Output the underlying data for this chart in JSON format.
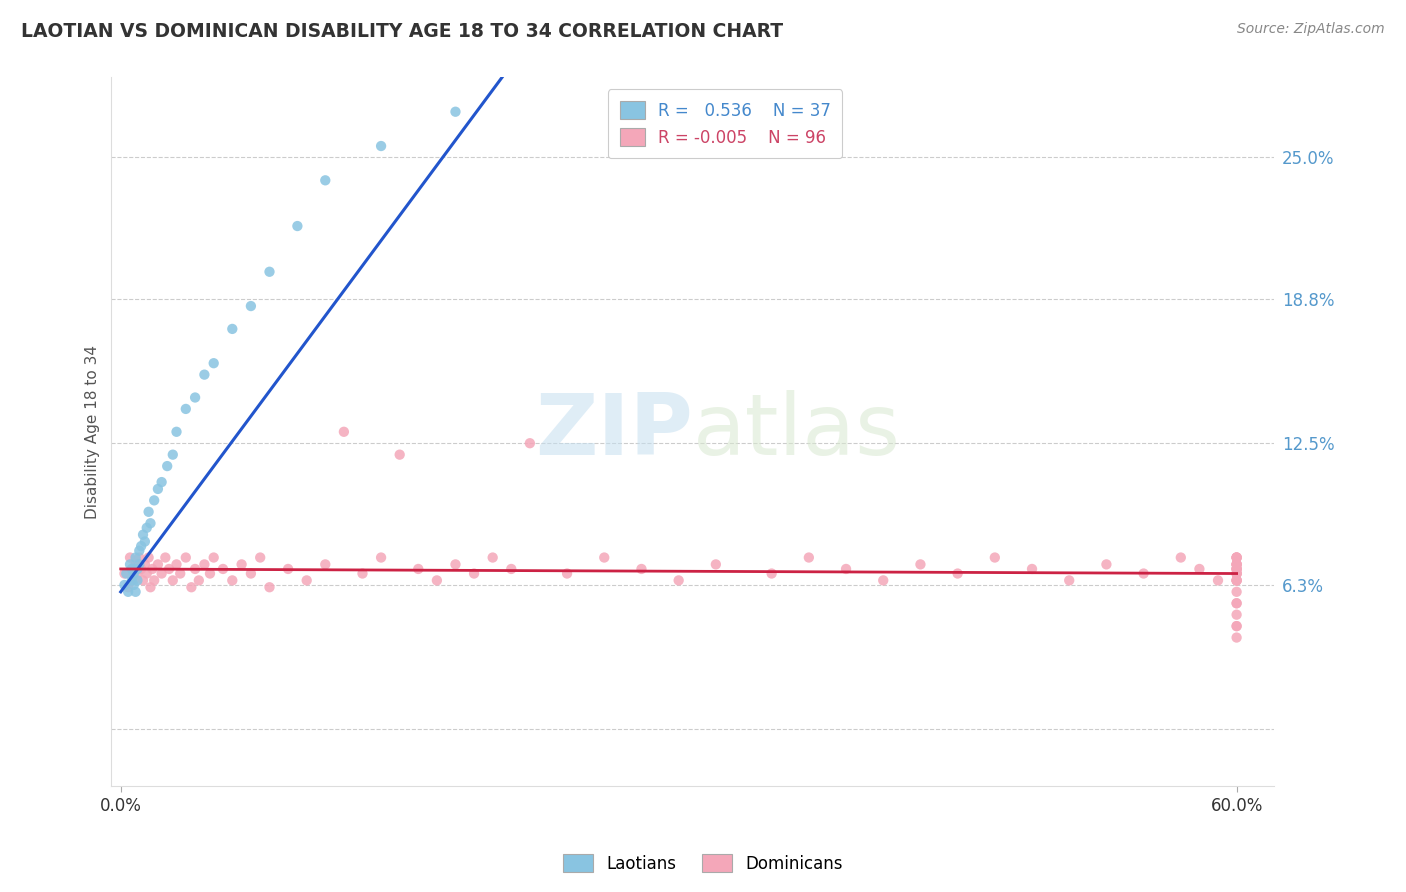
{
  "title": "LAOTIAN VS DOMINICAN DISABILITY AGE 18 TO 34 CORRELATION CHART",
  "source_text": "Source: ZipAtlas.com",
  "ylabel": "Disability Age 18 to 34",
  "laotian_color": "#89c4e1",
  "dominican_color": "#f4a7b9",
  "regression_laotian_color": "#2255cc",
  "regression_dominican_color": "#cc2244",
  "watermark_color": "#d0e8f0",
  "ytick_labels": [
    "6.3%",
    "12.5%",
    "18.8%",
    "25.0%"
  ],
  "ytick_values": [
    0.063,
    0.125,
    0.188,
    0.25
  ],
  "xlim": [
    -0.005,
    0.62
  ],
  "ylim": [
    -0.025,
    0.285
  ],
  "lao_x": [
    0.002,
    0.003,
    0.004,
    0.005,
    0.006,
    0.006,
    0.007,
    0.007,
    0.008,
    0.008,
    0.009,
    0.009,
    0.01,
    0.01,
    0.011,
    0.012,
    0.013,
    0.014,
    0.015,
    0.016,
    0.018,
    0.02,
    0.022,
    0.025,
    0.028,
    0.03,
    0.035,
    0.04,
    0.045,
    0.05,
    0.06,
    0.07,
    0.08,
    0.095,
    0.11,
    0.14,
    0.18
  ],
  "lao_y": [
    0.063,
    0.068,
    0.06,
    0.072,
    0.065,
    0.07,
    0.063,
    0.068,
    0.075,
    0.06,
    0.065,
    0.07,
    0.072,
    0.078,
    0.08,
    0.085,
    0.082,
    0.088,
    0.095,
    0.09,
    0.1,
    0.105,
    0.108,
    0.115,
    0.12,
    0.13,
    0.14,
    0.145,
    0.155,
    0.16,
    0.175,
    0.185,
    0.2,
    0.22,
    0.24,
    0.255,
    0.27
  ],
  "dom_x": [
    0.002,
    0.004,
    0.005,
    0.006,
    0.007,
    0.008,
    0.009,
    0.01,
    0.011,
    0.012,
    0.013,
    0.014,
    0.015,
    0.016,
    0.017,
    0.018,
    0.02,
    0.022,
    0.024,
    0.026,
    0.028,
    0.03,
    0.032,
    0.035,
    0.038,
    0.04,
    0.042,
    0.045,
    0.048,
    0.05,
    0.055,
    0.06,
    0.065,
    0.07,
    0.075,
    0.08,
    0.09,
    0.1,
    0.11,
    0.12,
    0.13,
    0.14,
    0.15,
    0.16,
    0.17,
    0.18,
    0.19,
    0.2,
    0.21,
    0.22,
    0.24,
    0.26,
    0.28,
    0.3,
    0.32,
    0.35,
    0.37,
    0.39,
    0.41,
    0.43,
    0.45,
    0.47,
    0.49,
    0.51,
    0.53,
    0.55,
    0.57,
    0.58,
    0.59,
    0.6,
    0.6,
    0.6,
    0.6,
    0.6,
    0.6,
    0.6,
    0.6,
    0.6,
    0.6,
    0.6,
    0.6,
    0.6,
    0.6,
    0.6,
    0.6,
    0.6,
    0.6,
    0.6,
    0.6,
    0.6,
    0.6,
    0.6,
    0.6,
    0.6,
    0.6,
    0.6
  ],
  "dom_y": [
    0.068,
    0.062,
    0.075,
    0.07,
    0.065,
    0.072,
    0.068,
    0.075,
    0.07,
    0.065,
    0.072,
    0.068,
    0.075,
    0.062,
    0.07,
    0.065,
    0.072,
    0.068,
    0.075,
    0.07,
    0.065,
    0.072,
    0.068,
    0.075,
    0.062,
    0.07,
    0.065,
    0.072,
    0.068,
    0.075,
    0.07,
    0.065,
    0.072,
    0.068,
    0.075,
    0.062,
    0.07,
    0.065,
    0.072,
    0.13,
    0.068,
    0.075,
    0.12,
    0.07,
    0.065,
    0.072,
    0.068,
    0.075,
    0.07,
    0.125,
    0.068,
    0.075,
    0.07,
    0.065,
    0.072,
    0.068,
    0.075,
    0.07,
    0.065,
    0.072,
    0.068,
    0.075,
    0.07,
    0.065,
    0.072,
    0.068,
    0.075,
    0.07,
    0.065,
    0.072,
    0.068,
    0.06,
    0.055,
    0.072,
    0.068,
    0.05,
    0.075,
    0.07,
    0.065,
    0.072,
    0.068,
    0.075,
    0.07,
    0.065,
    0.072,
    0.055,
    0.075,
    0.07,
    0.065,
    0.045,
    0.068,
    0.075,
    0.07,
    0.065,
    0.045,
    0.04
  ]
}
